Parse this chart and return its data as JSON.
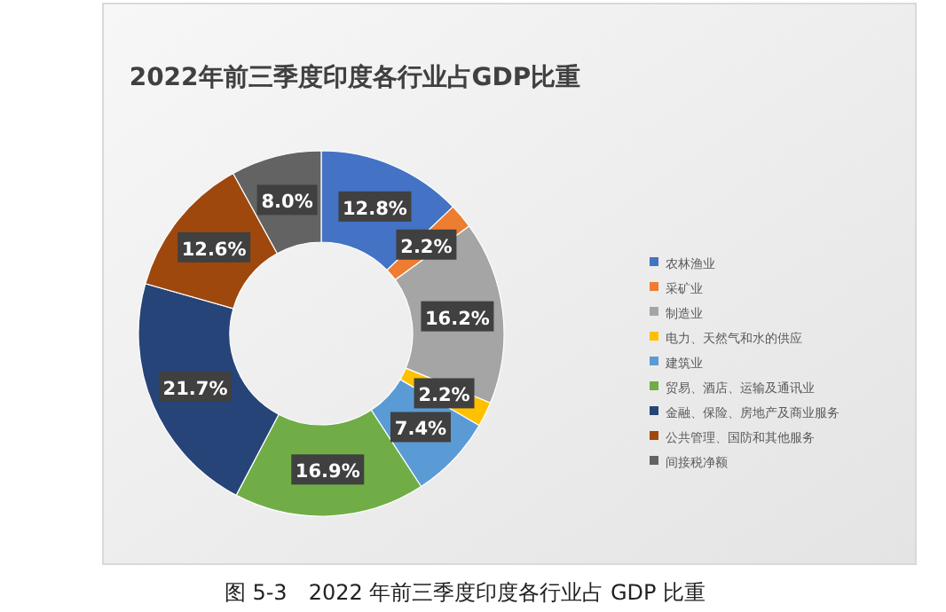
{
  "chart_data": {
    "type": "donut",
    "title": "2022年前三季度印度各行业占GDP比重",
    "categories": [
      "农林渔业",
      "采矿业",
      "制造业",
      "电力、天然气和水的供应",
      "建筑业",
      "贸易、酒店、运输及通讯业",
      "金融、保险、房地产及商业服务",
      "公共管理、国防和其他服务",
      "间接税净额"
    ],
    "values": [
      12.8,
      2.2,
      16.2,
      2.2,
      7.4,
      16.9,
      21.7,
      12.6,
      8.0
    ],
    "value_labels": [
      "12.8%",
      "2.2%",
      "16.2%",
      "2.2%",
      "7.4%",
      "16.9%",
      "21.7%",
      "12.6%",
      "8.0%"
    ],
    "colors": [
      "#4472c4",
      "#ed7d31",
      "#a5a5a5",
      "#ffc000",
      "#5b9bd5",
      "#70ad47",
      "#264478",
      "#9e480e",
      "#636363"
    ],
    "legend": "right",
    "annotations": [
      "图 5-3　2022 年前三季度印度各行业占 GDP 比重"
    ]
  }
}
